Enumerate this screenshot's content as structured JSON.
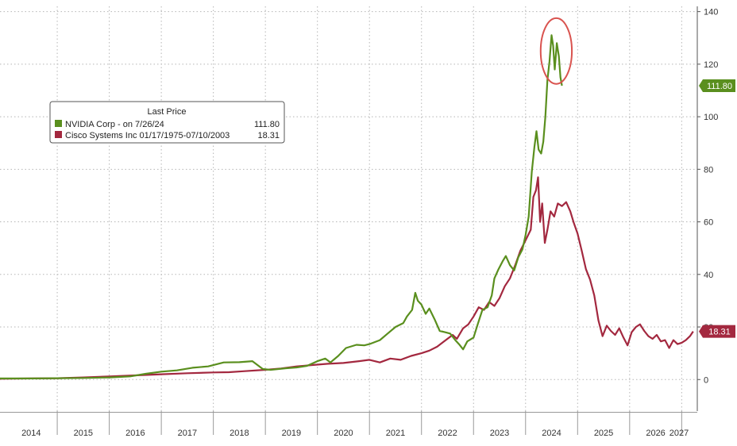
{
  "chart_data": {
    "type": "line",
    "ylim": [
      -12,
      142
    ],
    "y_ticks": [
      0,
      20,
      40,
      60,
      80,
      100,
      120,
      140
    ],
    "x_ticks": [
      "2014",
      "2015",
      "2016",
      "2017",
      "2018",
      "2019",
      "2020",
      "2021",
      "2022",
      "2023",
      "2024",
      "2025",
      "2026",
      "2027"
    ],
    "xlim": [
      2013.9,
      2027.3
    ],
    "grid": true,
    "legend": {
      "title": "Last Price",
      "placement": "upper-left",
      "entries": [
        {
          "label": "NVIDIA Corp -   on 7/26/24",
          "value": "111.80"
        },
        {
          "label": "Cisco Systems Inc 01/17/1975-07/10/2003",
          "value": "18.31"
        }
      ]
    },
    "series": [
      {
        "name": "NVIDIA Corp -   on 7/26/24",
        "color": "#5a8f1e",
        "last_label": "111.80",
        "points": [
          [
            2013.9,
            0.4
          ],
          [
            2014.5,
            0.4
          ],
          [
            2015.0,
            0.5
          ],
          [
            2015.5,
            0.6
          ],
          [
            2016.0,
            0.8
          ],
          [
            2016.4,
            1.2
          ],
          [
            2016.7,
            2.2
          ],
          [
            2017.0,
            3.0
          ],
          [
            2017.3,
            3.5
          ],
          [
            2017.6,
            4.5
          ],
          [
            2017.9,
            5.0
          ],
          [
            2018.2,
            6.5
          ],
          [
            2018.5,
            6.6
          ],
          [
            2018.75,
            7.0
          ],
          [
            2018.95,
            4.0
          ],
          [
            2019.1,
            3.7
          ],
          [
            2019.4,
            4.3
          ],
          [
            2019.6,
            4.6
          ],
          [
            2019.8,
            5.2
          ],
          [
            2020.0,
            7.0
          ],
          [
            2020.15,
            8.0
          ],
          [
            2020.25,
            6.5
          ],
          [
            2020.4,
            9.0
          ],
          [
            2020.55,
            12.0
          ],
          [
            2020.75,
            13.2
          ],
          [
            2020.9,
            13.0
          ],
          [
            2021.0,
            13.5
          ],
          [
            2021.2,
            15.0
          ],
          [
            2021.35,
            17.5
          ],
          [
            2021.5,
            20.0
          ],
          [
            2021.65,
            21.5
          ],
          [
            2021.72,
            24.0
          ],
          [
            2021.82,
            26.5
          ],
          [
            2021.88,
            33.0
          ],
          [
            2021.93,
            30.0
          ],
          [
            2022.0,
            28.5
          ],
          [
            2022.08,
            25.0
          ],
          [
            2022.15,
            27.0
          ],
          [
            2022.25,
            23.0
          ],
          [
            2022.35,
            18.5
          ],
          [
            2022.45,
            18.0
          ],
          [
            2022.55,
            17.5
          ],
          [
            2022.65,
            15.0
          ],
          [
            2022.72,
            13.5
          ],
          [
            2022.8,
            11.5
          ],
          [
            2022.88,
            14.5
          ],
          [
            2023.0,
            16.0
          ],
          [
            2023.08,
            21.0
          ],
          [
            2023.17,
            26.5
          ],
          [
            2023.27,
            27.5
          ],
          [
            2023.35,
            32.0
          ],
          [
            2023.4,
            38.5
          ],
          [
            2023.48,
            42.0
          ],
          [
            2023.56,
            45.0
          ],
          [
            2023.62,
            47.0
          ],
          [
            2023.7,
            43.5
          ],
          [
            2023.78,
            41.5
          ],
          [
            2023.86,
            46.5
          ],
          [
            2023.94,
            49.5
          ],
          [
            2024.0,
            55.0
          ],
          [
            2024.06,
            62.0
          ],
          [
            2024.12,
            79.0
          ],
          [
            2024.17,
            88.5
          ],
          [
            2024.21,
            94.5
          ],
          [
            2024.25,
            87.5
          ],
          [
            2024.3,
            86.0
          ],
          [
            2024.34,
            90.5
          ],
          [
            2024.38,
            100.0
          ],
          [
            2024.42,
            114.0
          ],
          [
            2024.46,
            121.0
          ],
          [
            2024.5,
            131.0
          ],
          [
            2024.53,
            127.0
          ],
          [
            2024.56,
            118.0
          ],
          [
            2024.6,
            128.0
          ],
          [
            2024.64,
            123.0
          ],
          [
            2024.67,
            115.0
          ],
          [
            2024.7,
            111.8
          ]
        ]
      },
      {
        "name": "Cisco Systems Inc 01/17/1975-07/10/2003",
        "color": "#a3283f",
        "last_label": "18.31",
        "points": [
          [
            2013.9,
            0.3
          ],
          [
            2014.5,
            0.4
          ],
          [
            2015.0,
            0.5
          ],
          [
            2015.5,
            0.8
          ],
          [
            2016.0,
            1.2
          ],
          [
            2016.5,
            1.6
          ],
          [
            2017.0,
            2.0
          ],
          [
            2017.5,
            2.4
          ],
          [
            2018.0,
            2.7
          ],
          [
            2018.3,
            2.8
          ],
          [
            2018.6,
            3.2
          ],
          [
            2019.0,
            3.7
          ],
          [
            2019.3,
            4.2
          ],
          [
            2019.6,
            5.0
          ],
          [
            2019.9,
            5.5
          ],
          [
            2020.2,
            6.0
          ],
          [
            2020.5,
            6.3
          ],
          [
            2020.8,
            7.0
          ],
          [
            2021.0,
            7.5
          ],
          [
            2021.2,
            6.5
          ],
          [
            2021.4,
            8.0
          ],
          [
            2021.6,
            7.5
          ],
          [
            2021.8,
            9.0
          ],
          [
            2022.0,
            10.0
          ],
          [
            2022.15,
            11.0
          ],
          [
            2022.3,
            12.5
          ],
          [
            2022.4,
            14.0
          ],
          [
            2022.5,
            15.5
          ],
          [
            2022.6,
            17.0
          ],
          [
            2022.68,
            15.5
          ],
          [
            2022.8,
            19.5
          ],
          [
            2022.9,
            21.0
          ],
          [
            2023.0,
            24.0
          ],
          [
            2023.1,
            27.5
          ],
          [
            2023.2,
            26.5
          ],
          [
            2023.3,
            29.5
          ],
          [
            2023.4,
            28.0
          ],
          [
            2023.5,
            31.0
          ],
          [
            2023.6,
            35.5
          ],
          [
            2023.7,
            38.5
          ],
          [
            2023.8,
            43.5
          ],
          [
            2023.9,
            49.0
          ],
          [
            2024.0,
            53.0
          ],
          [
            2024.1,
            57.0
          ],
          [
            2024.15,
            69.5
          ],
          [
            2024.2,
            72.0
          ],
          [
            2024.24,
            77.0
          ],
          [
            2024.28,
            60.0
          ],
          [
            2024.32,
            67.0
          ],
          [
            2024.37,
            52.0
          ],
          [
            2024.42,
            57.0
          ],
          [
            2024.48,
            64.0
          ],
          [
            2024.55,
            62.0
          ],
          [
            2024.62,
            67.0
          ],
          [
            2024.7,
            66.0
          ],
          [
            2024.78,
            67.5
          ],
          [
            2024.86,
            64.0
          ],
          [
            2024.92,
            60.0
          ],
          [
            2025.0,
            55.5
          ],
          [
            2025.08,
            49.0
          ],
          [
            2025.16,
            42.0
          ],
          [
            2025.24,
            38.0
          ],
          [
            2025.32,
            32.0
          ],
          [
            2025.4,
            22.5
          ],
          [
            2025.48,
            16.5
          ],
          [
            2025.56,
            20.5
          ],
          [
            2025.64,
            18.5
          ],
          [
            2025.72,
            17.0
          ],
          [
            2025.8,
            19.5
          ],
          [
            2025.88,
            16.0
          ],
          [
            2025.96,
            13.0
          ],
          [
            2026.04,
            18.0
          ],
          [
            2026.12,
            20.0
          ],
          [
            2026.2,
            21.0
          ],
          [
            2026.28,
            18.5
          ],
          [
            2026.36,
            16.5
          ],
          [
            2026.44,
            15.5
          ],
          [
            2026.52,
            17.0
          ],
          [
            2026.6,
            14.5
          ],
          [
            2026.68,
            15.0
          ],
          [
            2026.76,
            12.0
          ],
          [
            2026.84,
            15.0
          ],
          [
            2026.92,
            13.5
          ],
          [
            2027.0,
            14.0
          ],
          [
            2027.08,
            15.0
          ],
          [
            2027.16,
            16.5
          ],
          [
            2027.22,
            18.31
          ]
        ]
      }
    ]
  },
  "annotation": {
    "type": "circle",
    "color": "#d9534f",
    "center": [
      2024.59,
      125
    ],
    "rx_years": 0.3,
    "ry_units": 12.5
  }
}
